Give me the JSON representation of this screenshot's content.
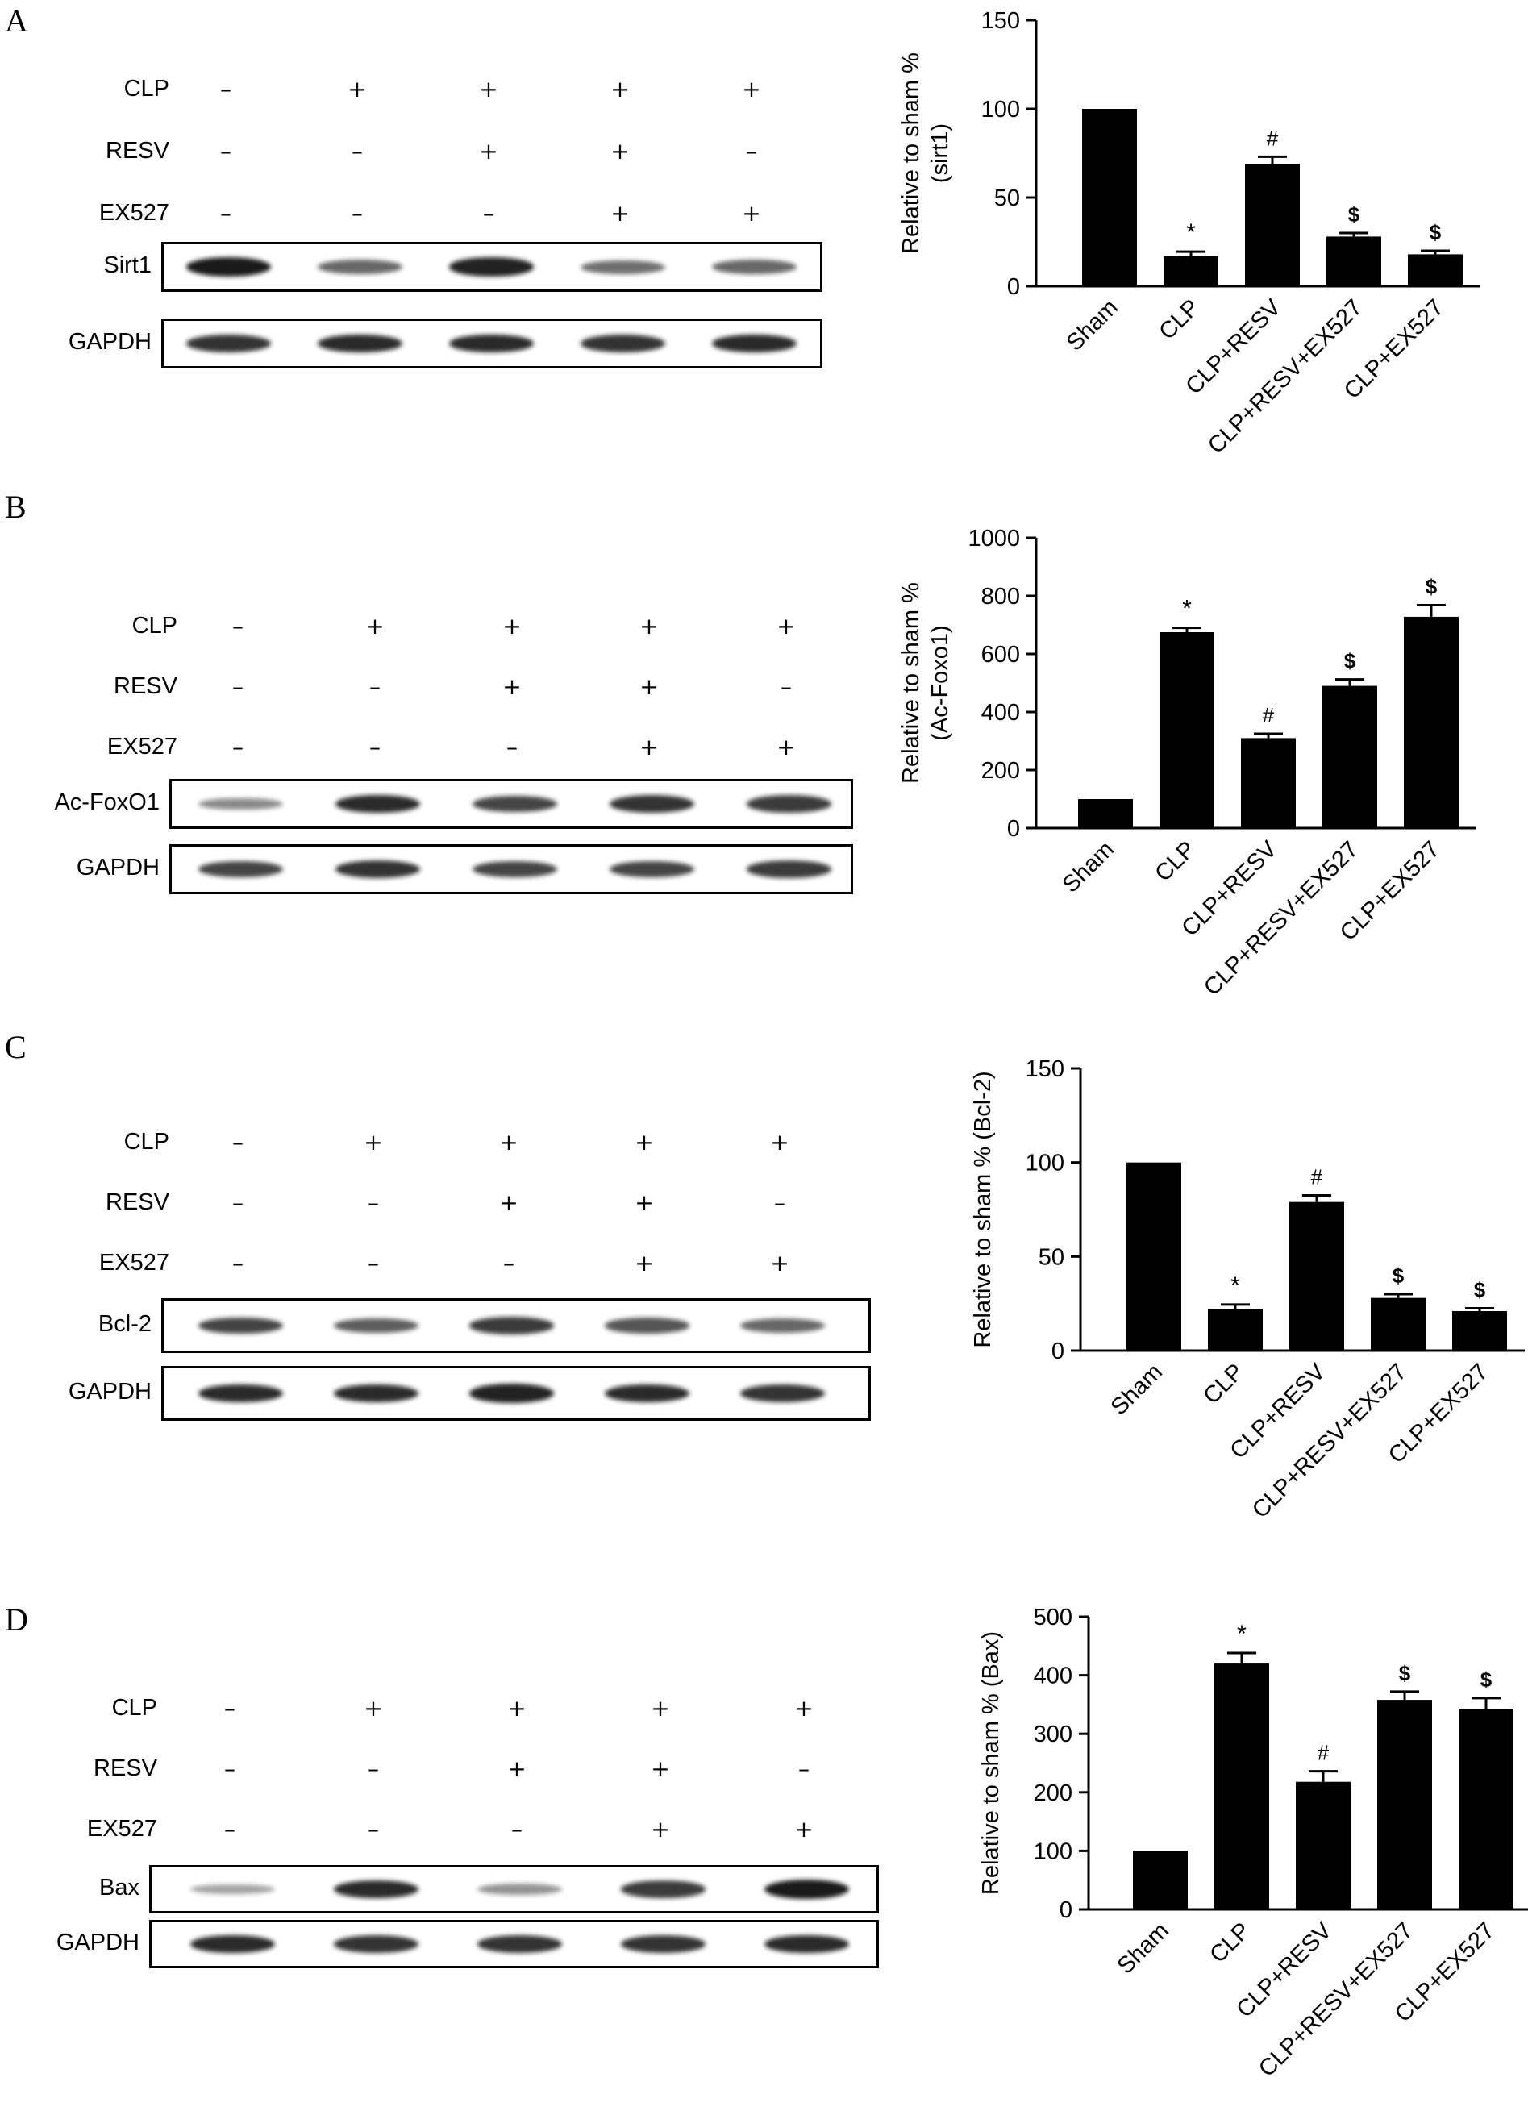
{
  "panels": [
    {
      "letter": "A",
      "conditions": [
        {
          "label": "CLP",
          "signs": [
            "–",
            "+",
            "+",
            "+",
            "+"
          ]
        },
        {
          "label": "RESV",
          "signs": [
            "–",
            "–",
            "+",
            "+",
            "–"
          ]
        },
        {
          "label": "EX527",
          "signs": [
            "–",
            "–",
            "–",
            "+",
            "+"
          ]
        }
      ],
      "blots": [
        {
          "label": "Sirt1",
          "intensity": [
            1.0,
            0.55,
            0.95,
            0.5,
            0.55
          ]
        },
        {
          "label": "GAPDH",
          "intensity": [
            0.85,
            0.9,
            0.9,
            0.85,
            0.9
          ]
        }
      ]
    },
    {
      "letter": "B",
      "conditions": [
        {
          "label": "CLP",
          "signs": [
            "–",
            "+",
            "+",
            "+",
            "+"
          ]
        },
        {
          "label": "RESV",
          "signs": [
            "–",
            "–",
            "+",
            "+",
            "–"
          ]
        },
        {
          "label": "EX527",
          "signs": [
            "–",
            "–",
            "–",
            "+",
            "+"
          ]
        }
      ],
      "blots": [
        {
          "label": "Ac-FoxO1",
          "intensity": [
            0.35,
            0.9,
            0.75,
            0.85,
            0.8
          ]
        },
        {
          "label": "GAPDH",
          "intensity": [
            0.75,
            0.85,
            0.75,
            0.75,
            0.8
          ]
        }
      ]
    },
    {
      "letter": "C",
      "conditions": [
        {
          "label": "CLP",
          "signs": [
            "–",
            "+",
            "+",
            "+",
            "+"
          ]
        },
        {
          "label": "RESV",
          "signs": [
            "–",
            "–",
            "+",
            "+",
            "–"
          ]
        },
        {
          "label": "EX527",
          "signs": [
            "–",
            "–",
            "–",
            "+",
            "+"
          ]
        }
      ],
      "blots": [
        {
          "label": "Bcl-2",
          "intensity": [
            0.75,
            0.6,
            0.8,
            0.65,
            0.55
          ]
        },
        {
          "label": "GAPDH",
          "intensity": [
            0.9,
            0.9,
            0.95,
            0.9,
            0.85
          ]
        }
      ]
    },
    {
      "letter": "D",
      "conditions": [
        {
          "label": "CLP",
          "signs": [
            "–",
            "+",
            "+",
            "+",
            "+"
          ]
        },
        {
          "label": "RESV",
          "signs": [
            "–",
            "–",
            "+",
            "+",
            "–"
          ]
        },
        {
          "label": "EX527",
          "signs": [
            "–",
            "–",
            "–",
            "+",
            "+"
          ]
        }
      ],
      "blots": [
        {
          "label": "Bax",
          "intensity": [
            0.2,
            0.9,
            0.3,
            0.8,
            1.0
          ]
        },
        {
          "label": "GAPDH",
          "intensity": [
            0.9,
            0.85,
            0.85,
            0.85,
            0.9
          ]
        }
      ]
    }
  ],
  "chart_data": [
    {
      "type": "bar",
      "categories": [
        "Sham",
        "CLP",
        "CLP+RESV",
        "CLP+RESV+EX527",
        "CLP+EX527"
      ],
      "values": [
        100,
        17,
        69,
        28,
        18
      ],
      "errors": [
        0,
        2.5,
        4,
        2,
        2
      ],
      "annotations": [
        "",
        "*",
        "#",
        "$",
        "$"
      ],
      "ylabel": "Relative to sham %\n(sirt1)",
      "ylim": [
        0,
        150
      ],
      "yticks": [
        0,
        50,
        100,
        150
      ],
      "bar_color": "#000000"
    },
    {
      "type": "bar",
      "categories": [
        "Sham",
        "CLP",
        "CLP+RESV",
        "CLP+RESV+EX527",
        "CLP+EX527"
      ],
      "values": [
        100,
        675,
        310,
        490,
        728
      ],
      "errors": [
        0,
        15,
        15,
        22,
        40
      ],
      "annotations": [
        "",
        "*",
        "#",
        "$",
        "$"
      ],
      "ylabel": "Relative to sham %\n(Ac-Foxo1)",
      "ylim": [
        0,
        1000
      ],
      "yticks": [
        0,
        200,
        400,
        600,
        800,
        1000
      ],
      "bar_color": "#000000"
    },
    {
      "type": "bar",
      "categories": [
        "Sham",
        "CLP",
        "CLP+RESV",
        "CLP+RESV+EX527",
        "CLP+EX527"
      ],
      "values": [
        100,
        22,
        79,
        28,
        21
      ],
      "errors": [
        0,
        2.5,
        3.5,
        2,
        1.5
      ],
      "annotations": [
        "",
        "*",
        "#",
        "$",
        "$"
      ],
      "ylabel": "Relative to sham % (Bcl-2)",
      "ylim": [
        0,
        150
      ],
      "yticks": [
        0,
        50,
        100,
        150
      ],
      "bar_color": "#000000"
    },
    {
      "type": "bar",
      "categories": [
        "Sham",
        "CLP",
        "CLP+RESV",
        "CLP+RESV+EX527",
        "CLP+EX527"
      ],
      "values": [
        100,
        420,
        218,
        358,
        343
      ],
      "errors": [
        0,
        18,
        18,
        14,
        18
      ],
      "annotations": [
        "",
        "*",
        "#",
        "$",
        "$"
      ],
      "ylabel": "Relative to sham % (Bax)",
      "ylim": [
        0,
        500
      ],
      "yticks": [
        0,
        100,
        200,
        300,
        400,
        500
      ],
      "bar_color": "#000000"
    }
  ]
}
